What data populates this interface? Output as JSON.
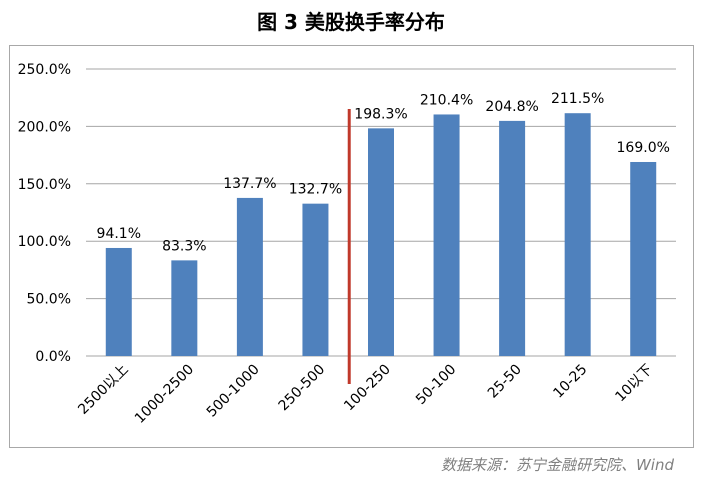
{
  "figure": {
    "title": "图 3  美股换手率分布",
    "source": "数据来源：苏宁金融研究院、Wind"
  },
  "chart_data": {
    "type": "bar",
    "categories": [
      "2500以上",
      "1000-2500",
      "500-1000",
      "250-500",
      "100-250",
      "50-100",
      "25-50",
      "10-25",
      "10以下"
    ],
    "values": [
      94.1,
      83.3,
      137.7,
      132.7,
      198.3,
      210.4,
      204.8,
      211.5,
      169.0
    ],
    "value_labels": [
      "94.1%",
      "83.3%",
      "137.7%",
      "132.7%",
      "198.3%",
      "210.4%",
      "204.8%",
      "211.5%",
      "169.0%"
    ],
    "yticks": [
      0,
      50,
      100,
      150,
      200,
      250
    ],
    "ytick_labels": [
      "0.0%",
      "50.0%",
      "100.0%",
      "150.0%",
      "200.0%",
      "250.0%"
    ],
    "ylim": [
      0,
      250
    ],
    "grid": true,
    "bar_color": "#4f81bd",
    "divider_color": "#c0392b",
    "grid_color": "#a6a6a6"
  }
}
